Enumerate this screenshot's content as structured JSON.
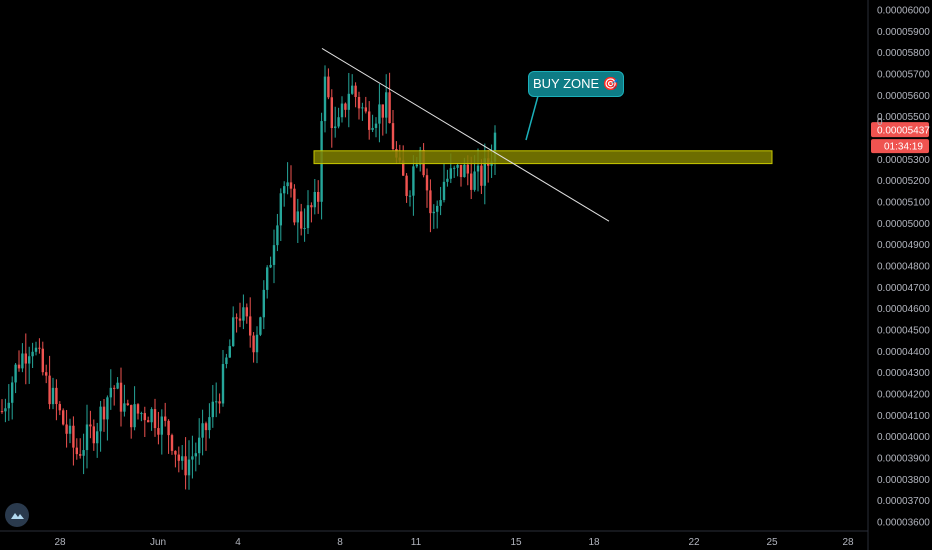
{
  "chart_data": {
    "type": "candlestick",
    "symbol_context": "price chart",
    "y_range": [
      3.55e-05,
      6.1e-05
    ],
    "y_ticks": [
      "0.00006000",
      "0.00005900",
      "0.00005800",
      "0.00005700",
      "0.00005600",
      "0.00005500",
      "0.00005300",
      "0.00005200",
      "0.00005100",
      "0.00005000",
      "0.00004900",
      "0.00004800",
      "0.00004700",
      "0.00004600",
      "0.00004500",
      "0.00004400",
      "0.00004300",
      "0.00004200",
      "0.00004100",
      "0.00004000",
      "0.00003900",
      "0.00003800",
      "0.00003700",
      "0.00003600"
    ],
    "x_ticks": [
      "28",
      "Jun",
      "4",
      "8",
      "11",
      "15",
      "18",
      "22",
      "25",
      "28"
    ],
    "current_price": "0.00005437",
    "countdown": "01:34:19",
    "hidden_label_fragment": "0",
    "colors": {
      "up": "#26a69a",
      "down": "#ef5350",
      "zone": "#808000",
      "zone_border": "#c8c800",
      "trendline": "#e0e0e0",
      "price_badge": "#ef5350"
    },
    "annotations": {
      "callout_text": "BUY ZONE 🎯",
      "buy_zone": {
        "price_top": 5.34e-05,
        "price_bottom": 5.28e-05
      },
      "trendline": {
        "from_price": 5.82e-05,
        "to_price": 5.01e-05
      }
    },
    "candles_start_price": 4.1e-05,
    "candles_end_price": 5.48e-05
  }
}
